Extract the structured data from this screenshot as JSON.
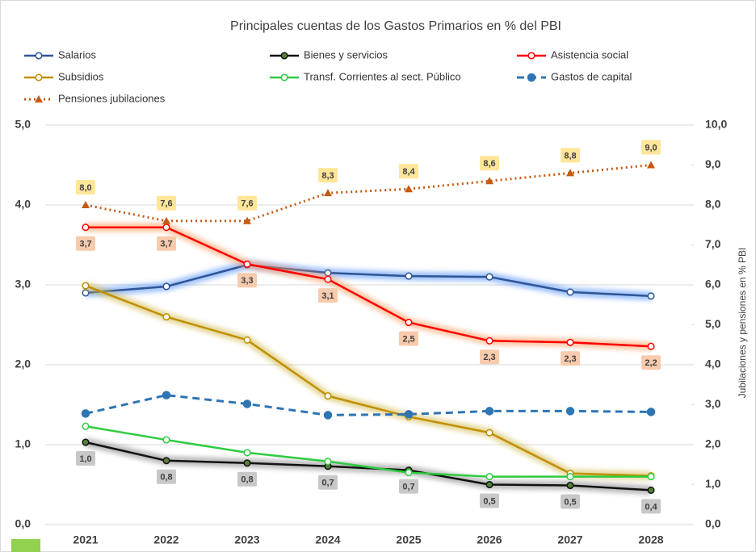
{
  "chart_data": {
    "type": "line",
    "title": "Principales cuentas de los Gastos Primarios en % del PBI",
    "y2_label": "Jubilaciones y pensiones en % PBI",
    "categories": [
      "2021",
      "2022",
      "2023",
      "2024",
      "2025",
      "2026",
      "2027",
      "2028"
    ],
    "ylim": [
      0,
      5
    ],
    "yticks": [
      {
        "value": 0,
        "label": "0,0"
      },
      {
        "value": 1,
        "label": "1,0"
      },
      {
        "value": 2,
        "label": "2,0"
      },
      {
        "value": 3,
        "label": "3,0"
      },
      {
        "value": 4,
        "label": "4,0"
      },
      {
        "value": 5,
        "label": "5,0"
      }
    ],
    "y2lim": [
      0,
      10
    ],
    "y2ticks": [
      {
        "value": 0,
        "label": "0,0"
      },
      {
        "value": 1,
        "label": "1,0"
      },
      {
        "value": 2,
        "label": "2,0"
      },
      {
        "value": 3,
        "label": "3,0"
      },
      {
        "value": 4,
        "label": "4,0"
      },
      {
        "value": 5,
        "label": "5,0"
      },
      {
        "value": 6,
        "label": "6,0"
      },
      {
        "value": 7,
        "label": "7,0"
      },
      {
        "value": 8,
        "label": "8,0"
      },
      {
        "value": 9,
        "label": "9,0"
      },
      {
        "value": 10,
        "label": "10,0"
      }
    ],
    "grid": true,
    "legend_position": "top",
    "series": [
      {
        "name": "Salarios",
        "color": "#2f5597",
        "glow": "#4f8ff7",
        "line_style": "solid",
        "values": [
          2.9,
          2.98,
          3.25,
          3.15,
          3.11,
          3.1,
          2.91,
          2.86
        ]
      },
      {
        "name": "Bienes y servicios",
        "color": "#111111",
        "glow": "#808080",
        "line_style": "solid",
        "values": [
          1.03,
          0.8,
          0.77,
          0.73,
          0.68,
          0.5,
          0.49,
          0.43
        ],
        "value_labels": [
          "1,0",
          "0,8",
          "0,8",
          "0,7",
          "0,7",
          "0,5",
          "0,5",
          "0,4"
        ],
        "label_position": "below",
        "label_background": "#c8c8c8"
      },
      {
        "name": "Asistencia social",
        "color": "#ff0000",
        "glow": "#ff9a5c",
        "line_style": "solid",
        "values": [
          3.72,
          3.72,
          3.26,
          3.07,
          2.53,
          2.3,
          2.28,
          2.23
        ],
        "value_labels": [
          "3,7",
          "3,7",
          "3,3",
          "3,1",
          "2,5",
          "2,3",
          "2,3",
          "2,2"
        ],
        "label_position": "below",
        "label_background": "#f8cbad"
      },
      {
        "name": "Subsidios",
        "color": "#bf9000",
        "glow": "#d4b84a",
        "line_style": "solid",
        "values": [
          2.99,
          2.6,
          2.31,
          1.61,
          1.35,
          1.15,
          0.64,
          0.61
        ]
      },
      {
        "name": "Transf. Corrientes al sect. Público",
        "color": "#2ecc40",
        "line_style": "solid",
        "values": [
          1.23,
          1.06,
          0.9,
          0.79,
          0.65,
          0.6,
          0.6,
          0.6
        ]
      },
      {
        "name": "Gastos de capital",
        "color": "#2e75b6",
        "line_style": "dashed",
        "values": [
          1.39,
          1.62,
          1.51,
          1.37,
          1.38,
          1.42,
          1.42,
          1.41
        ]
      },
      {
        "name": "Pensiones jubilaciones",
        "color": "#c55a11",
        "line_style": "dotted",
        "axis": "y2",
        "values": [
          8.0,
          7.6,
          7.6,
          8.3,
          8.4,
          8.6,
          8.8,
          9.0
        ],
        "value_labels": [
          "8,0",
          "7,6",
          "7,6",
          "8,3",
          "8,4",
          "8,6",
          "8,8",
          "9,0"
        ],
        "label_position": "above",
        "label_background": "#ffe699"
      }
    ]
  }
}
